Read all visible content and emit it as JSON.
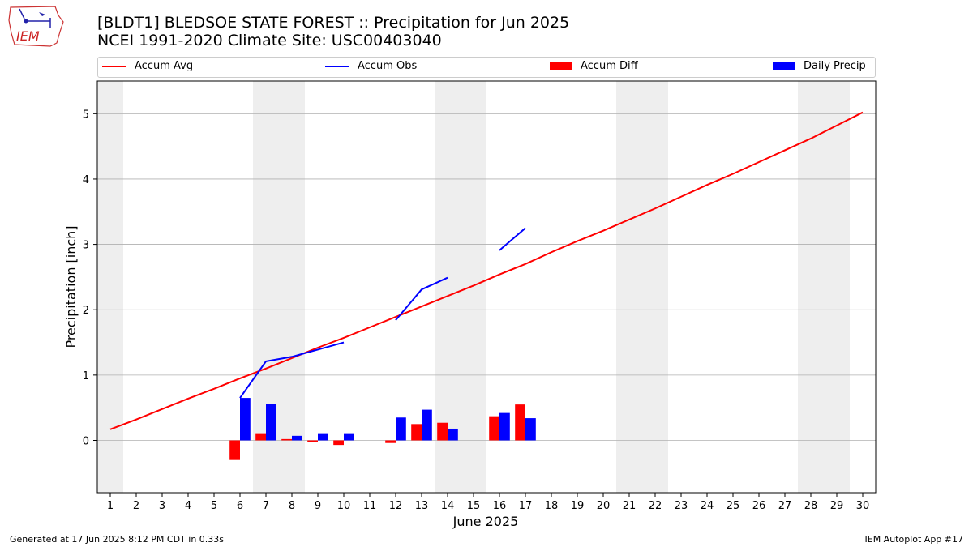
{
  "header": {
    "title_line1": "[BLDT1] BLEDSOE STATE FOREST :: Precipitation for Jun 2025",
    "title_line2": "NCEI 1991-2020 Climate Site: USC00403040",
    "logo_text": "IEM"
  },
  "footer": {
    "generated": "Generated at 17 Jun 2025 8:12 PM CDT in 0.33s",
    "app": "IEM Autoplot App #17"
  },
  "colors": {
    "avg": "#ff0000",
    "obs": "#0000ff",
    "diff": "#ff0000",
    "daily": "#0000ff",
    "weekend": "#eeeeee",
    "grid": "#b0b0b0"
  },
  "chart_data": {
    "type": "line",
    "xlabel": "June 2025",
    "ylabel": "Precipitation [inch]",
    "xlim": [
      0.5,
      30.5
    ],
    "ylim": [
      -0.8,
      5.5
    ],
    "yticks": [
      0,
      1,
      2,
      3,
      4,
      5
    ],
    "x_ticks": [
      1,
      2,
      3,
      4,
      5,
      6,
      7,
      8,
      9,
      10,
      11,
      12,
      13,
      14,
      15,
      16,
      17,
      18,
      19,
      20,
      21,
      22,
      23,
      24,
      25,
      26,
      27,
      28,
      29,
      30
    ],
    "grid": "horizontal",
    "legend_position": "top",
    "weekend_shading": [
      [
        0.5,
        1.5
      ],
      [
        6.5,
        8.5
      ],
      [
        13.5,
        15.5
      ],
      [
        20.5,
        22.5
      ],
      [
        27.5,
        29.5
      ]
    ],
    "series": [
      {
        "name": "Accum Avg",
        "kind": "line",
        "x": [
          1,
          2,
          3,
          4,
          5,
          6,
          7,
          8,
          9,
          10,
          11,
          12,
          13,
          14,
          15,
          16,
          17,
          18,
          19,
          20,
          21,
          22,
          23,
          24,
          25,
          26,
          27,
          28,
          29,
          30
        ],
        "values": [
          0.17,
          0.32,
          0.48,
          0.64,
          0.79,
          0.95,
          1.1,
          1.26,
          1.42,
          1.57,
          1.73,
          1.89,
          2.05,
          2.21,
          2.37,
          2.54,
          2.7,
          2.88,
          3.05,
          3.21,
          3.38,
          3.55,
          3.73,
          3.91,
          4.08,
          4.26,
          4.44,
          4.62,
          4.82,
          5.02
        ]
      },
      {
        "name": "Accum Obs",
        "kind": "line",
        "segments": [
          {
            "x": [
              6,
              7,
              8,
              9,
              10
            ],
            "values": [
              0.65,
              1.21,
              1.28,
              1.39,
              1.5
            ]
          },
          {
            "x": [
              12,
              13,
              14
            ],
            "values": [
              1.84,
              2.31,
              2.49
            ]
          },
          {
            "x": [
              16,
              17
            ],
            "values": [
              2.91,
              3.25
            ]
          }
        ]
      },
      {
        "name": "Accum Diff",
        "kind": "bar",
        "x": [
          6,
          7,
          8,
          9,
          10,
          12,
          13,
          14,
          16,
          17
        ],
        "values": [
          -0.3,
          0.11,
          0.02,
          -0.03,
          -0.07,
          -0.04,
          0.25,
          0.27,
          0.37,
          0.55
        ]
      },
      {
        "name": "Daily Precip",
        "kind": "bar",
        "x": [
          6,
          7,
          8,
          9,
          10,
          12,
          13,
          14,
          16,
          17
        ],
        "values": [
          0.65,
          0.56,
          0.07,
          0.11,
          0.11,
          0.35,
          0.47,
          0.18,
          0.42,
          0.34
        ]
      }
    ]
  }
}
